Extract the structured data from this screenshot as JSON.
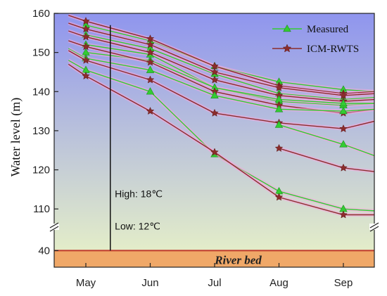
{
  "chart_data": {
    "type": "line",
    "title": "",
    "xlabel": "",
    "ylabel": "Water level (m)",
    "categories": [
      "May",
      "Jun",
      "Jul",
      "Aug",
      "Sep"
    ],
    "ylim_upper": [
      105,
      160
    ],
    "ylim_lower": [
      37,
      44
    ],
    "yticks_upper": [
      110,
      120,
      130,
      140,
      150,
      160
    ],
    "yticks_lower": [
      40
    ],
    "axis_break": true,
    "legend": {
      "placement": "top-right",
      "entries": [
        "Measured",
        "ICM-RWTS"
      ]
    },
    "colors": {
      "measured": "#33cc33",
      "icm_rwts": "#8b2c2c",
      "river_bed_fill": "#f0a868",
      "river_bed_line": "#c0392b",
      "bg_top": "#8f95ee",
      "bg_bottom": "#e9f3c6"
    },
    "river_bed": {
      "label": "River bed",
      "level": 40
    },
    "marker_vline_month": 0.38,
    "annotations": [
      {
        "text": "High: 18℃",
        "month": 0.45,
        "value": 113
      },
      {
        "text": "Low:  12℃",
        "month": 0.45,
        "value": 42
      }
    ],
    "series": [
      {
        "name": "Measured",
        "kind": "measured",
        "x": [
          0,
          1,
          2,
          3,
          4
        ],
        "values": [
          157.0,
          153.0,
          146.5,
          142.5,
          140.5
        ],
        "end_value": 140.0
      },
      {
        "name": "ICM-RWTS",
        "kind": "icm_rwts",
        "x": [
          -0.27,
          0,
          1,
          2,
          3,
          4
        ],
        "values": [
          159.5,
          158.0,
          153.5,
          146.5,
          141.5,
          139.5
        ],
        "end_value": 140.0
      },
      {
        "name": "Measured",
        "kind": "measured",
        "x": [
          0,
          1,
          2,
          3,
          4
        ],
        "values": [
          154.5,
          151.0,
          144.5,
          139.5,
          138.0
        ],
        "end_value": 138.5
      },
      {
        "name": "ICM-RWTS",
        "kind": "icm_rwts",
        "x": [
          -0.27,
          0,
          1,
          2,
          3,
          4
        ],
        "values": [
          157.5,
          156.0,
          152.0,
          145.0,
          141.0,
          139.0
        ],
        "end_value": 139.5
      },
      {
        "name": "Measured",
        "kind": "measured",
        "x": [
          0,
          1,
          2,
          3,
          4
        ],
        "values": [
          152.0,
          149.5,
          141.0,
          137.5,
          136.5
        ],
        "end_value": 137.0
      },
      {
        "name": "ICM-RWTS",
        "kind": "icm_rwts",
        "x": [
          -0.27,
          0,
          1,
          2,
          3,
          4
        ],
        "values": [
          155.5,
          154.0,
          150.0,
          143.0,
          139.0,
          137.5
        ],
        "end_value": 138.0
      },
      {
        "name": "Measured",
        "kind": "measured",
        "x": [
          0,
          1,
          2,
          3,
          4
        ],
        "values": [
          150.0,
          148.0,
          141.0,
          138.0,
          137.0
        ],
        "end_value": 137.0
      },
      {
        "name": "ICM-RWTS",
        "kind": "icm_rwts",
        "x": [
          -0.27,
          0,
          1,
          2,
          3,
          4
        ],
        "values": [
          153.0,
          151.5,
          147.5,
          140.0,
          136.5,
          134.5
        ],
        "end_value": 135.5
      },
      {
        "name": "Measured",
        "kind": "measured",
        "x": [
          -0.27,
          0,
          1,
          2,
          3,
          4
        ],
        "values": [
          151.0,
          148.5,
          145.5,
          139.0,
          135.5,
          135.0
        ],
        "end_value": 135.5
      },
      {
        "name": "ICM-RWTS",
        "kind": "icm_rwts",
        "x": [
          -0.27,
          0,
          1,
          2,
          3,
          4
        ],
        "values": [
          150.5,
          148.0,
          143.0,
          134.5,
          132.0,
          130.5
        ],
        "end_value": 132.5
      },
      {
        "name": "Measured",
        "kind": "measured",
        "x": [
          -0.27,
          0,
          1,
          2,
          3,
          4
        ],
        "values": [
          148.0,
          145.5,
          140.0,
          124.0,
          114.5,
          110.0
        ],
        "end_value": 109.5
      },
      {
        "name": "ICM-RWTS",
        "kind": "icm_rwts",
        "x": [
          -0.27,
          0,
          1,
          2,
          3,
          4
        ],
        "values": [
          147.0,
          144.0,
          135.0,
          124.5,
          113.0,
          108.5
        ],
        "end_value": 108.5
      },
      {
        "name": "Measured",
        "kind": "measured",
        "x": [
          3,
          4
        ],
        "values": [
          131.5,
          126.5
        ],
        "end_value": 123.5
      },
      {
        "name": "ICM-RWTS",
        "kind": "icm_rwts",
        "x": [
          3,
          4
        ],
        "values": [
          125.5,
          120.5
        ],
        "end_value": 119.5
      }
    ]
  }
}
